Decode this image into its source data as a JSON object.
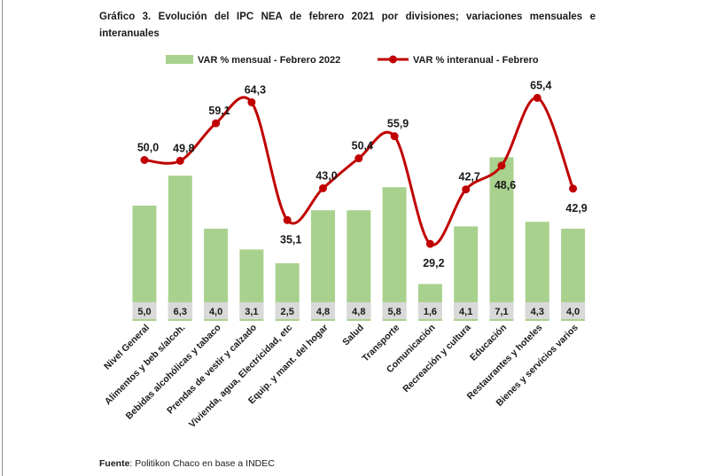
{
  "title": "Gráfico 3. Evolución del IPC NEA de febrero 2021 por divisiones; variaciones mensuales e interanuales",
  "source_label": "Fuente",
  "source_text": ": Politikon Chaco en base a INDEC",
  "colors": {
    "bar": "#a9d18e",
    "bar_label_bg": "#d9d9d9",
    "line": "#c00000"
  },
  "chart_data": {
    "type": "bar",
    "categories": [
      "Nivel General",
      "Alimentos y beb s/alcoh.",
      "Bebidas alcohólicas y tabaco",
      "Prendas de vestir y calzado",
      "Vivienda, agua, Electricidad, etc",
      "Equip. y mant. del hogar",
      "Salud",
      "Transporte",
      "Comunicación",
      "Recreación y cultura",
      "Educación",
      "Restaurantes y hoteles",
      "Bienes y servicios varios"
    ],
    "series": [
      {
        "name": "VAR % mensual - Febrero 2022",
        "kind": "bar",
        "axis": "left",
        "values": [
          5.0,
          6.3,
          4.0,
          3.1,
          2.5,
          4.8,
          4.8,
          5.8,
          1.6,
          4.1,
          7.1,
          4.3,
          4.0
        ],
        "labels": [
          "5,0",
          "6,3",
          "4,0",
          "3,1",
          "2,5",
          "4,8",
          "4,8",
          "5,8",
          "1,6",
          "4,1",
          "7,1",
          "4,3",
          "4,0"
        ]
      },
      {
        "name": "VAR % interanual - Febrero",
        "kind": "line",
        "axis": "right",
        "values": [
          50.0,
          49.8,
          59.1,
          64.3,
          35.1,
          43.0,
          50.4,
          55.9,
          29.2,
          42.7,
          48.6,
          65.4,
          42.9
        ],
        "labels": [
          "50,0",
          "49,8",
          "59,1",
          "64,3",
          "35,1",
          "43,0",
          "50,4",
          "55,9",
          "29,2",
          "42,7",
          "48,6",
          "65,4",
          "42,9"
        ]
      }
    ],
    "ylim_left": [
      0,
      8
    ],
    "ylim_right": [
      0,
      100
    ],
    "legend": "top",
    "grid": false
  }
}
